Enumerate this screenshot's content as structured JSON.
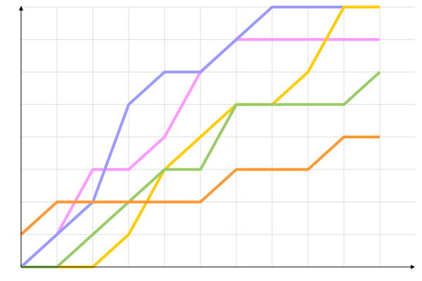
{
  "chart_data": {
    "type": "line",
    "title": "",
    "xlabel": "",
    "ylabel": "",
    "x": [
      0,
      1,
      2,
      3,
      4,
      5,
      6,
      7,
      8,
      9,
      10
    ],
    "xlim": [
      0,
      11
    ],
    "ylim": [
      0,
      8
    ],
    "grid": true,
    "legend": "none",
    "series": [
      {
        "color": "#ff99ff",
        "values": [
          0,
          1,
          3,
          3,
          4,
          6,
          7,
          7,
          7,
          7,
          7
        ]
      },
      {
        "color": "#9999ff",
        "values": [
          0,
          1,
          2,
          5,
          6,
          6,
          7,
          8,
          8,
          8,
          8
        ]
      },
      {
        "color": "#ffcc00",
        "values": [
          0,
          0,
          0,
          1,
          3,
          4,
          5,
          5,
          6,
          8,
          8
        ]
      },
      {
        "color": "#99cc66",
        "values": [
          0,
          0,
          1,
          2,
          3,
          3,
          5,
          5,
          5,
          5,
          6
        ]
      },
      {
        "color": "#ff9933",
        "values": [
          1,
          2,
          2,
          2,
          2,
          2,
          3,
          3,
          3,
          4,
          4
        ]
      }
    ]
  }
}
